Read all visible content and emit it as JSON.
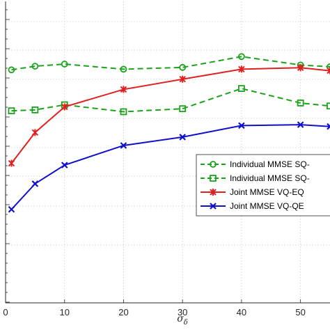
{
  "chart_data": {
    "type": "line",
    "xlabel": "σ",
    "xlabel_subscript": "δ",
    "ylabel": "",
    "xlim": [
      0,
      55
    ],
    "ylim": [
      0,
      1
    ],
    "x_ticks": [
      0,
      10,
      20,
      30,
      40,
      50
    ],
    "x_tick_labels": [
      "0",
      "10",
      "20",
      "30",
      "40",
      "50"
    ],
    "grid": true,
    "grid_style": "dotted",
    "legend_position": "right",
    "series": [
      {
        "name": "Individual MMSE SQ-",
        "color": "#1aa31a",
        "line_style": "dashed",
        "marker": "circle",
        "x": [
          1,
          5,
          10,
          20,
          30,
          40,
          50,
          55
        ],
        "y": [
          0.773,
          0.785,
          0.792,
          0.775,
          0.781,
          0.817,
          0.789,
          0.783
        ]
      },
      {
        "name": "Individual MMSE SQ-",
        "color": "#1aa31a",
        "line_style": "dashed",
        "marker": "square",
        "x": [
          1,
          5,
          10,
          20,
          30,
          40,
          50,
          55
        ],
        "y": [
          0.637,
          0.64,
          0.657,
          0.634,
          0.644,
          0.711,
          0.663,
          0.653
        ]
      },
      {
        "name": "Joint MMSE VQ-EQ",
        "color": "#e02020",
        "line_style": "solid",
        "marker": "asterisk",
        "x": [
          1,
          5,
          10,
          20,
          30,
          40,
          50,
          55
        ],
        "y": [
          0.463,
          0.565,
          0.65,
          0.708,
          0.742,
          0.775,
          0.78,
          0.77
        ]
      },
      {
        "name": "Joint MMSE VQ-QE",
        "color": "#1010cc",
        "line_style": "solid",
        "marker": "x",
        "x": [
          1,
          5,
          10,
          20,
          30,
          40,
          50,
          55
        ],
        "y": [
          0.31,
          0.395,
          0.457,
          0.522,
          0.55,
          0.588,
          0.591,
          0.585
        ]
      }
    ]
  }
}
